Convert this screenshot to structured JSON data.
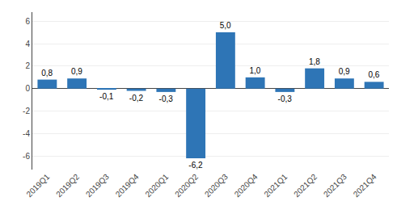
{
  "chart_data": {
    "type": "bar",
    "categories": [
      "2019Q1",
      "2019Q2",
      "2019Q3",
      "2019Q4",
      "2020Q1",
      "2020Q2",
      "2020Q3",
      "2020Q4",
      "2021Q1",
      "2021Q2",
      "2021Q3",
      "2021Q4"
    ],
    "values": [
      0.8,
      0.9,
      -0.1,
      -0.2,
      -0.3,
      -6.2,
      5.0,
      1.0,
      -0.3,
      1.8,
      0.9,
      0.6
    ],
    "value_labels": [
      "0,8",
      "0,9",
      "-0,1",
      "-0,2",
      "-0,3",
      "-6,2",
      "5,0",
      "1,0",
      "-0,3",
      "1,8",
      "0,9",
      "0,6"
    ],
    "color": "#2e75b6",
    "ylim": [
      -7.2,
      6.8
    ],
    "yticks": [
      -6,
      -4,
      -2,
      0,
      2,
      4,
      6
    ],
    "grid": true,
    "data_labels": true
  }
}
